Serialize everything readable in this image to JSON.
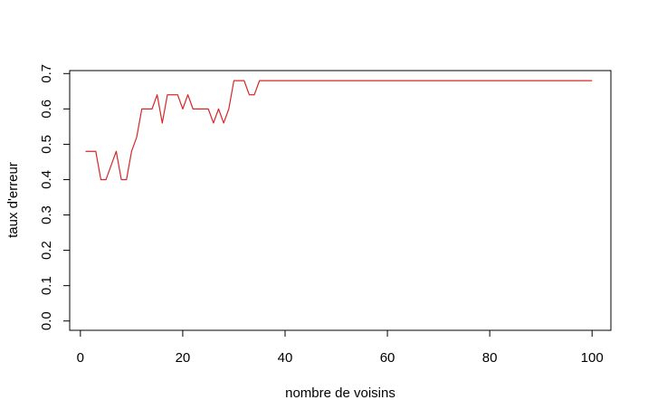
{
  "chart_data": {
    "type": "line",
    "title": "",
    "xlabel": "nombre de voisins",
    "ylabel": "taux d'erreur",
    "xlim": [
      1,
      100
    ],
    "ylim": [
      0,
      0.7
    ],
    "x_ticks": [
      "0",
      "20",
      "40",
      "60",
      "80",
      "100"
    ],
    "y_ticks": [
      "0.0",
      "0.1",
      "0.2",
      "0.3",
      "0.4",
      "0.5",
      "0.6",
      "0.7"
    ],
    "grid": false,
    "legend": "none",
    "series": [
      {
        "color": "#d62728",
        "x": [
          1,
          2,
          3,
          4,
          5,
          6,
          7,
          8,
          9,
          10,
          11,
          12,
          13,
          14,
          15,
          16,
          17,
          18,
          19,
          20,
          21,
          22,
          23,
          24,
          25,
          26,
          27,
          28,
          29,
          30,
          31,
          32,
          33,
          34,
          35,
          36,
          37,
          38,
          39,
          40,
          41,
          42,
          43,
          44,
          45,
          46,
          47,
          48,
          49,
          50,
          51,
          52,
          53,
          54,
          55,
          56,
          57,
          58,
          59,
          60,
          61,
          62,
          63,
          64,
          65,
          66,
          67,
          68,
          69,
          70,
          71,
          72,
          73,
          74,
          75,
          76,
          77,
          78,
          79,
          80,
          81,
          82,
          83,
          84,
          85,
          86,
          87,
          88,
          89,
          90,
          91,
          92,
          93,
          94,
          95,
          96,
          97,
          98,
          99,
          100
        ],
        "y": [
          0.48,
          0.48,
          0.48,
          0.4,
          0.4,
          0.44,
          0.48,
          0.4,
          0.4,
          0.48,
          0.52,
          0.6,
          0.6,
          0.6,
          0.64,
          0.56,
          0.64,
          0.64,
          0.64,
          0.6,
          0.64,
          0.6,
          0.6,
          0.6,
          0.6,
          0.56,
          0.6,
          0.56,
          0.6,
          0.68,
          0.68,
          0.68,
          0.64,
          0.64,
          0.68,
          0.68,
          0.68,
          0.68,
          0.68,
          0.68,
          0.68,
          0.68,
          0.68,
          0.68,
          0.68,
          0.68,
          0.68,
          0.68,
          0.68,
          0.68,
          0.68,
          0.68,
          0.68,
          0.68,
          0.68,
          0.68,
          0.68,
          0.68,
          0.68,
          0.68,
          0.68,
          0.68,
          0.68,
          0.68,
          0.68,
          0.68,
          0.68,
          0.68,
          0.68,
          0.68,
          0.68,
          0.68,
          0.68,
          0.68,
          0.68,
          0.68,
          0.68,
          0.68,
          0.68,
          0.68,
          0.68,
          0.68,
          0.68,
          0.68,
          0.68,
          0.68,
          0.68,
          0.68,
          0.68,
          0.68,
          0.68,
          0.68,
          0.68,
          0.68,
          0.68,
          0.68,
          0.68,
          0.68,
          0.68,
          0.68
        ]
      }
    ]
  }
}
